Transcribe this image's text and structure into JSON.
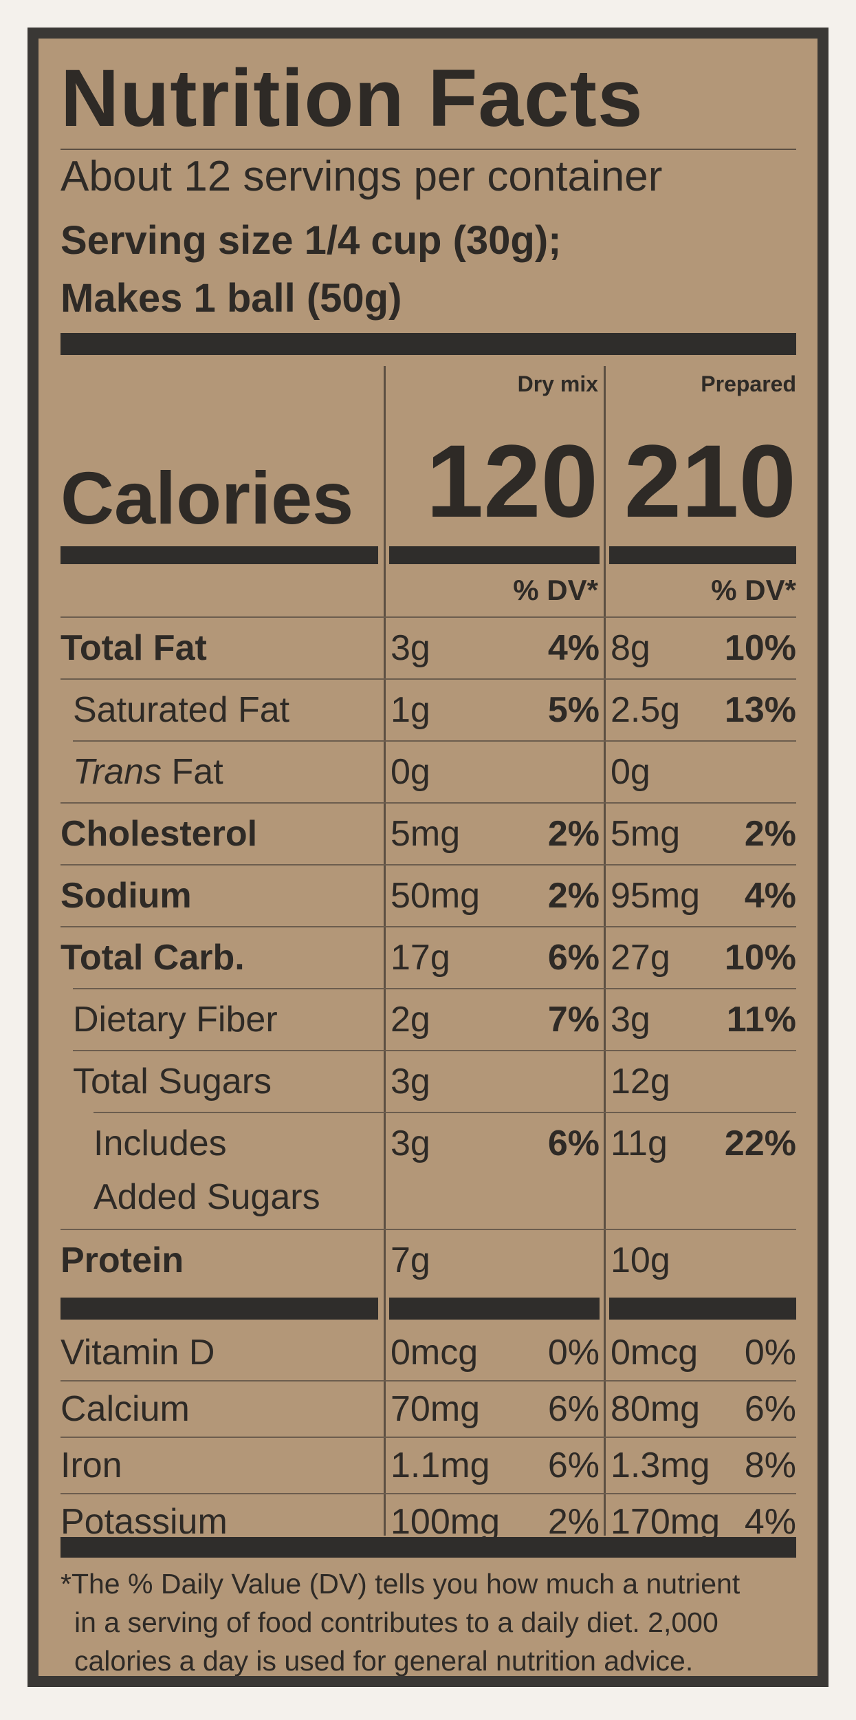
{
  "title": "Nutrition Facts",
  "servings_per_container": "About 12 servings per container",
  "serving_size_line1": "Serving size 1/4 cup (30g);",
  "serving_size_line2": "Makes 1 ball (50g)",
  "columns": {
    "dry_mix": "Dry mix",
    "prepared": "Prepared"
  },
  "calories": {
    "label": "Calories",
    "dry_mix": "120",
    "prepared": "210"
  },
  "dv_header": "% DV*",
  "nutrients": [
    {
      "name": "Total Fat",
      "dry_amount": "3g",
      "dry_dv": "4%",
      "prep_amount": "8g",
      "prep_dv": "10%"
    },
    {
      "name": "Saturated Fat",
      "dry_amount": "1g",
      "dry_dv": "5%",
      "prep_amount": "2.5g",
      "prep_dv": "13%"
    },
    {
      "name_italic": "Trans",
      "name_rest": " Fat",
      "dry_amount": "0g",
      "dry_dv": "",
      "prep_amount": "0g",
      "prep_dv": ""
    },
    {
      "name": "Cholesterol",
      "dry_amount": "5mg",
      "dry_dv": "2%",
      "prep_amount": "5mg",
      "prep_dv": "2%"
    },
    {
      "name": "Sodium",
      "dry_amount": "50mg",
      "dry_dv": "2%",
      "prep_amount": "95mg",
      "prep_dv": "4%"
    },
    {
      "name": "Total Carb.",
      "dry_amount": "17g",
      "dry_dv": "6%",
      "prep_amount": "27g",
      "prep_dv": "10%"
    },
    {
      "name": "Dietary Fiber",
      "dry_amount": "2g",
      "dry_dv": "7%",
      "prep_amount": "3g",
      "prep_dv": "11%"
    },
    {
      "name": "Total Sugars",
      "dry_amount": "3g",
      "dry_dv": "",
      "prep_amount": "12g",
      "prep_dv": ""
    },
    {
      "name_line1": "Includes",
      "name_line2": "Added Sugars",
      "dry_amount": "3g",
      "dry_dv": "6%",
      "prep_amount": "11g",
      "prep_dv": "22%"
    },
    {
      "name": "Protein",
      "dry_amount": "7g",
      "dry_dv": "",
      "prep_amount": "10g",
      "prep_dv": ""
    }
  ],
  "vitamins": [
    {
      "name": "Vitamin D",
      "dry_amount": "0mcg",
      "dry_dv": "0%",
      "prep_amount": "0mcg",
      "prep_dv": "0%"
    },
    {
      "name": "Calcium",
      "dry_amount": "70mg",
      "dry_dv": "6%",
      "prep_amount": "80mg",
      "prep_dv": "6%"
    },
    {
      "name": "Iron",
      "dry_amount": "1.1mg",
      "dry_dv": "6%",
      "prep_amount": "1.3mg",
      "prep_dv": "8%"
    },
    {
      "name": "Potassium",
      "dry_amount": "100mg",
      "dry_dv": "2%",
      "prep_amount": "170mg",
      "prep_dv": "4%"
    }
  ],
  "footnote_lines": [
    "*The % Daily Value (DV) tells you how much a nutrient",
    "in a serving of food contributes to a daily diet. 2,000",
    "calories a day is used for general nutrition advice."
  ]
}
